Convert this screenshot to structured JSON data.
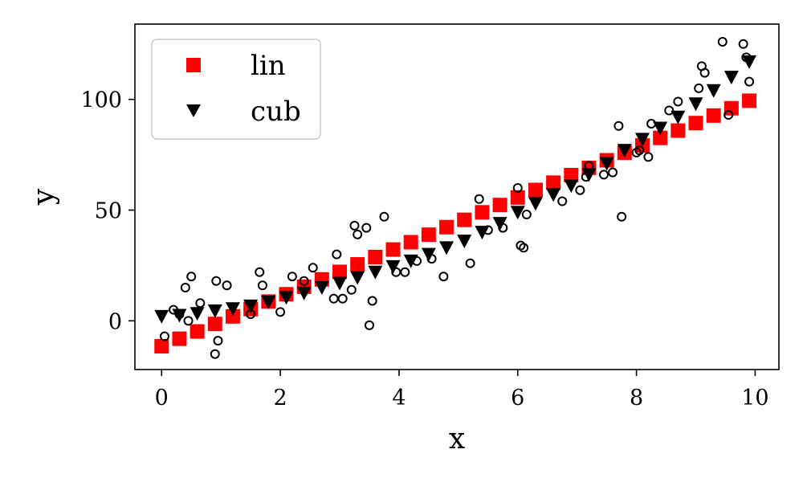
{
  "chart_data": {
    "type": "scatter",
    "title": "",
    "xlabel": "x",
    "ylabel": "y",
    "xlim": [
      -0.45,
      10.4
    ],
    "ylim": [
      -22,
      134
    ],
    "xticks": [
      0,
      2,
      4,
      6,
      8,
      10
    ],
    "yticks": [
      0,
      50,
      100
    ],
    "grid": false,
    "legend": {
      "placement": "top-left",
      "entries": [
        {
          "label": "lin",
          "marker": "square",
          "color": "#ff0000"
        },
        {
          "label": "cub",
          "marker": "triangle-down",
          "color": "#000000"
        }
      ]
    },
    "series": [
      {
        "name": "lin",
        "marker": "square",
        "color": "#ff0000",
        "line": "y = 11.2x - 11.5 (x from 0 to 9.9)",
        "x": [
          0.0,
          0.3,
          0.6,
          0.9,
          1.2,
          1.5,
          1.8,
          2.1,
          2.4,
          2.7,
          3.0,
          3.3,
          3.6,
          3.9,
          4.2,
          4.5,
          4.8,
          5.1,
          5.4,
          5.7,
          6.0,
          6.3,
          6.6,
          6.9,
          7.2,
          7.5,
          7.8,
          8.1,
          8.4,
          8.7,
          9.0,
          9.3,
          9.6,
          9.9
        ],
        "y": [
          -11.5,
          -8.1,
          -4.8,
          -1.4,
          2.0,
          5.3,
          8.7,
          12.0,
          15.4,
          18.7,
          22.1,
          25.5,
          28.8,
          32.2,
          35.5,
          38.9,
          42.3,
          45.6,
          49.0,
          52.3,
          55.7,
          59.1,
          62.4,
          65.8,
          69.1,
          72.5,
          75.9,
          79.2,
          82.6,
          85.9,
          89.3,
          92.7,
          96.0,
          99.4
        ]
      },
      {
        "name": "cub",
        "marker": "triangle-down",
        "color": "#000000",
        "x": [
          0.0,
          0.3,
          0.6,
          0.9,
          1.2,
          1.5,
          1.8,
          2.1,
          2.4,
          2.7,
          3.0,
          3.3,
          3.6,
          3.9,
          4.2,
          4.5,
          4.8,
          5.1,
          5.4,
          5.7,
          6.0,
          6.3,
          6.6,
          6.9,
          7.2,
          7.5,
          7.8,
          8.1,
          8.4,
          8.7,
          9.0,
          9.3,
          9.6,
          9.9
        ],
        "y": [
          2,
          2.5,
          3.3,
          4.5,
          5.5,
          6.7,
          8.5,
          10.5,
          12.5,
          15,
          17,
          19.5,
          22,
          24.5,
          27,
          30,
          33,
          36,
          40,
          44,
          49,
          53,
          57,
          61,
          66,
          71,
          77,
          82,
          87,
          92,
          98,
          104,
          110,
          117
        ]
      },
      {
        "name": "",
        "marker": "circle-open",
        "color": "#000000",
        "x": [
          0.05,
          0.2,
          0.3,
          0.4,
          0.45,
          0.5,
          0.65,
          0.9,
          0.92,
          0.95,
          1.1,
          1.5,
          1.65,
          1.7,
          2.0,
          2.2,
          2.4,
          2.55,
          2.9,
          2.95,
          3.05,
          3.2,
          3.25,
          3.3,
          3.45,
          3.5,
          3.55,
          3.75,
          3.95,
          4.1,
          4.3,
          4.55,
          4.75,
          5.2,
          5.35,
          5.5,
          5.75,
          6.0,
          6.05,
          6.1,
          6.15,
          6.75,
          7.05,
          7.15,
          7.2,
          7.45,
          7.6,
          7.7,
          7.75,
          8.0,
          8.05,
          8.2,
          8.25,
          8.55,
          8.7,
          9.05,
          9.1,
          9.15,
          9.45,
          9.55,
          9.8,
          9.85,
          9.9
        ],
        "y": [
          -7,
          5,
          3,
          15,
          0,
          20,
          8,
          -15,
          18,
          -9,
          16,
          3,
          22,
          16,
          4,
          20,
          18,
          24,
          10,
          30,
          10,
          14,
          43,
          39,
          42,
          -2,
          9,
          47,
          22,
          22,
          27,
          28,
          20,
          26,
          55,
          41,
          42,
          60,
          34,
          33,
          48,
          54,
          59,
          65,
          70,
          66,
          67,
          88,
          47,
          76,
          77,
          74,
          89,
          95,
          99,
          105,
          115,
          112,
          126,
          93,
          125,
          119,
          108
        ]
      }
    ]
  }
}
